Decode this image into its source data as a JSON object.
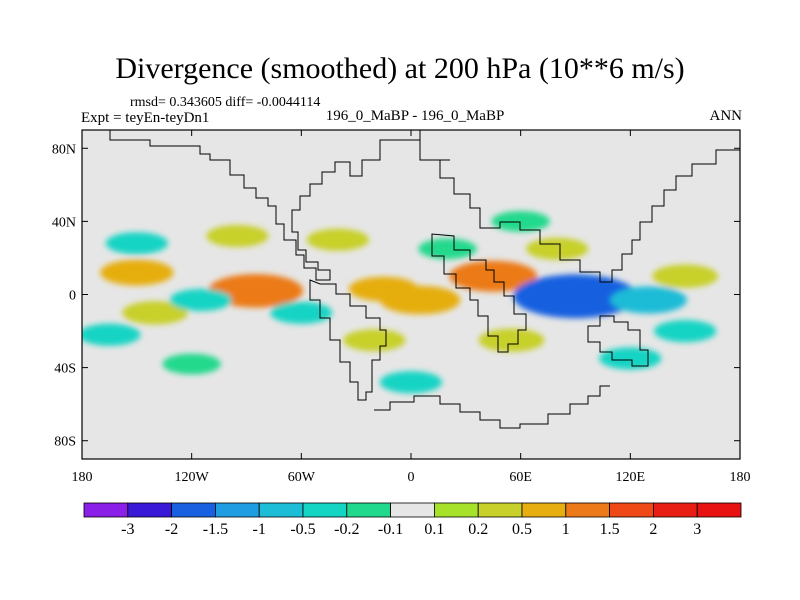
{
  "header": {
    "title": "Divergence (smoothed) at 200 hPa (10**6 m/s)",
    "stats": "rmsd= 0.343605 diff= -0.0044114",
    "expt": "Expt = teyEn-teyDn1",
    "case_label": "196_0_MaBP - 196_0_MaBP",
    "season": "ANN"
  },
  "chart_data": {
    "type": "heatmap",
    "title": "Divergence (smoothed) at 200 hPa (10**6 m/s)",
    "xlabel": "",
    "ylabel": "",
    "x_axis": {
      "range": [
        -180,
        180
      ],
      "ticks": [
        -180,
        -120,
        -60,
        0,
        60,
        120,
        180
      ],
      "tick_labels": [
        "180",
        "120W",
        "60W",
        "0",
        "60E",
        "120E",
        "180"
      ]
    },
    "y_axis": {
      "range": [
        -90,
        90
      ],
      "ticks": [
        80,
        40,
        0,
        -40,
        -80
      ],
      "tick_labels": [
        "80N",
        "40N",
        "0",
        "40S",
        "80S"
      ]
    },
    "colorbar": {
      "levels": [
        "-3",
        "-2",
        "-1.5",
        "-1",
        "-0.5",
        "-0.2",
        "-0.1",
        "0.1",
        "0.2",
        "0.5",
        "1",
        "1.5",
        "2",
        "3"
      ],
      "colors": [
        "#8a1fe8",
        "#3a18d8",
        "#1860e0",
        "#1f9de2",
        "#1dbcd7",
        "#14d4c4",
        "#20d98c",
        "#e6e6e6",
        "#a6e22a",
        "#c8d02c",
        "#e6ae10",
        "#ec7a18",
        "#ef4a16",
        "#e81e14",
        "#e81212"
      ]
    },
    "field": [
      {
        "lon": -150,
        "lat": 12,
        "value": 0.6
      },
      {
        "lon": -140,
        "lat": -10,
        "value": 0.4
      },
      {
        "lon": -165,
        "lat": -22,
        "value": -0.3
      },
      {
        "lon": -150,
        "lat": 28,
        "value": -0.3
      },
      {
        "lon": -85,
        "lat": 2,
        "value": 1.2
      },
      {
        "lon": -115,
        "lat": -3,
        "value": -0.3
      },
      {
        "lon": -95,
        "lat": 32,
        "value": 0.3
      },
      {
        "lon": -60,
        "lat": -10,
        "value": -0.3
      },
      {
        "lon": -40,
        "lat": 30,
        "value": 0.3
      },
      {
        "lon": -15,
        "lat": 3,
        "value": 0.5
      },
      {
        "lon": -20,
        "lat": -25,
        "value": 0.3
      },
      {
        "lon": 5,
        "lat": -3,
        "value": 0.8
      },
      {
        "lon": 20,
        "lat": 25,
        "value": -0.2
      },
      {
        "lon": 55,
        "lat": -25,
        "value": 0.4
      },
      {
        "lon": 45,
        "lat": 10,
        "value": 1.0
      },
      {
        "lon": 90,
        "lat": -1,
        "value": -2.0
      },
      {
        "lon": 130,
        "lat": -3,
        "value": -0.7
      },
      {
        "lon": 150,
        "lat": 10,
        "value": 0.4
      },
      {
        "lon": 150,
        "lat": -20,
        "value": -0.3
      },
      {
        "lon": 60,
        "lat": 40,
        "value": -0.2
      },
      {
        "lon": 0,
        "lat": -48,
        "value": -0.3
      },
      {
        "lon": 120,
        "lat": -35,
        "value": -0.3
      },
      {
        "lon": -120,
        "lat": -38,
        "value": -0.2
      },
      {
        "lon": 80,
        "lat": 25,
        "value": 0.3
      }
    ]
  }
}
